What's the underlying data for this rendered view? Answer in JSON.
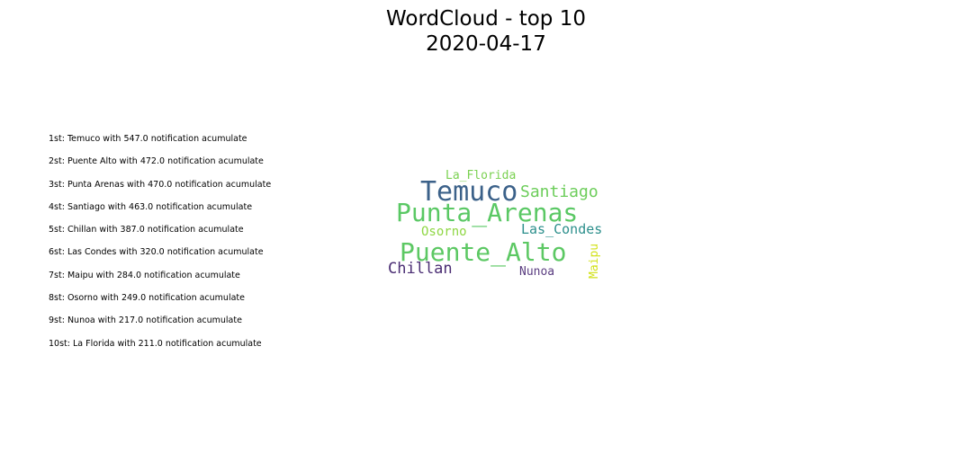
{
  "title": {
    "line1": "WordCloud - top 10",
    "line2": "2020-04-17"
  },
  "ranking": [
    "1st: Temuco with 547.0 notification acumulate",
    "2st: Puente Alto with 472.0 notification acumulate",
    "3st: Punta Arenas with 470.0 notification acumulate",
    "4st: Santiago with 463.0 notification acumulate",
    "5st: Chillan with 387.0 notification acumulate",
    "6st: Las Condes with 320.0 notification acumulate",
    "7st: Maipu with 284.0 notification acumulate",
    "8st: Osorno with 249.0 notification acumulate",
    "9st: Nunoa with 217.0 notification acumulate",
    "10st: La Florida with 211.0 notification acumulate"
  ],
  "chart_data": {
    "type": "wordcloud",
    "title": "WordCloud - top 10\n2020-04-17",
    "words": [
      {
        "text": "Temuco",
        "value": 547.0,
        "color": "#3b6189"
      },
      {
        "text": "Puente_Alto",
        "value": 472.0,
        "color": "#5cc863"
      },
      {
        "text": "Punta_Arenas",
        "value": 470.0,
        "color": "#5ac864"
      },
      {
        "text": "Santiago",
        "value": 463.0,
        "color": "#6ccd5a"
      },
      {
        "text": "Chillan",
        "value": 387.0,
        "color": "#4a2d73"
      },
      {
        "text": "Las_Condes",
        "value": 320.0,
        "color": "#2c8f8c"
      },
      {
        "text": "Maipu",
        "value": 284.0,
        "color": "#d2e21b"
      },
      {
        "text": "Osorno",
        "value": 249.0,
        "color": "#8fd744"
      },
      {
        "text": "Nunoa",
        "value": 217.0,
        "color": "#5a3d80"
      },
      {
        "text": "La_Florida",
        "value": 211.0,
        "color": "#7ad151"
      }
    ]
  }
}
